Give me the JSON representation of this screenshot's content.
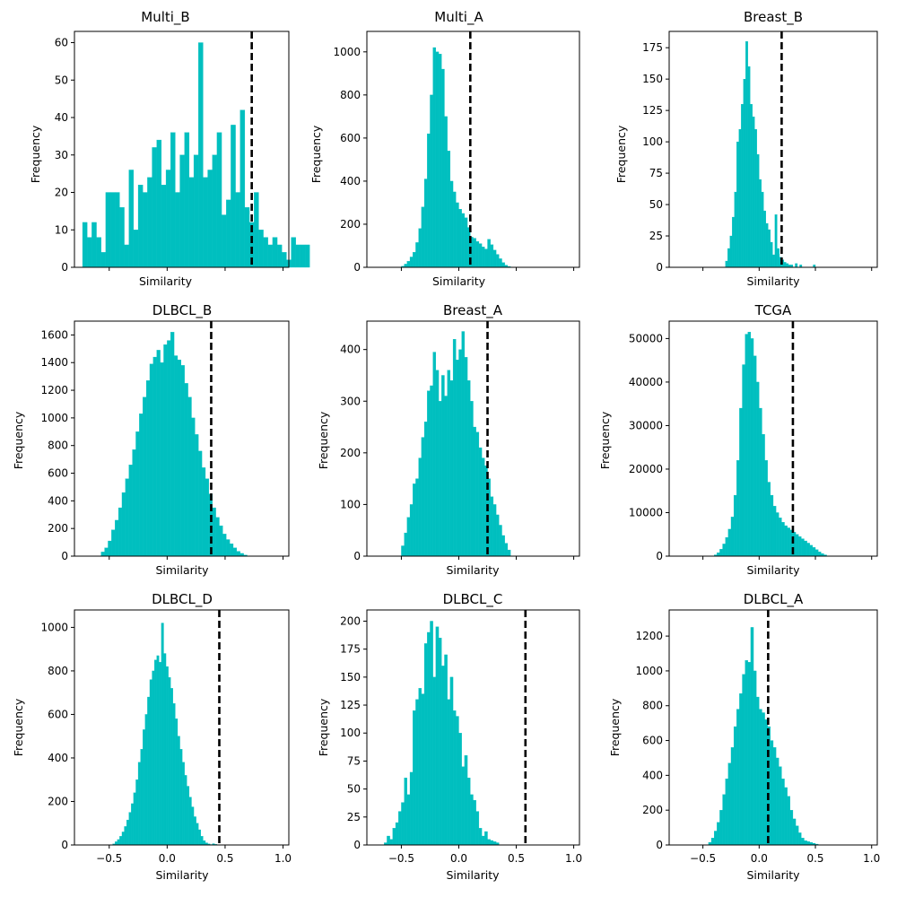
{
  "figure": {
    "bar_color": "#00BFBF",
    "threshold_color": "#000000"
  },
  "chart_data": [
    {
      "type": "histogram",
      "title": "Multi_B",
      "xlabel": "Similarity",
      "ylabel": "Frequency",
      "xlim": [
        -0.8,
        1.05
      ],
      "ylim": [
        0,
        63
      ],
      "yticks": [
        0,
        10,
        20,
        30,
        40,
        50,
        60
      ],
      "xticks": [
        -0.5,
        0.0,
        0.5,
        1.0
      ],
      "xtick_labels_shown": false,
      "threshold": 0.73,
      "bin_width": 0.04,
      "bin_start": -0.73,
      "values": [
        12,
        8,
        12,
        8,
        4,
        20,
        20,
        20,
        16,
        6,
        26,
        10,
        22,
        20,
        24,
        32,
        34,
        22,
        26,
        36,
        20,
        30,
        36,
        24,
        30,
        60,
        24,
        26,
        30,
        36,
        14,
        18,
        38,
        20,
        42,
        16,
        12,
        20,
        10,
        8,
        6,
        8,
        6,
        4,
        2,
        8,
        6,
        6,
        6
      ]
    },
    {
      "type": "histogram",
      "title": "Multi_A",
      "xlabel": "Similarity",
      "ylabel": "Frequency",
      "xlim": [
        -0.8,
        1.05
      ],
      "ylim": [
        0,
        1095
      ],
      "yticks": [
        0,
        200,
        400,
        600,
        800,
        1000
      ],
      "xticks": [
        -0.5,
        0.0,
        0.5,
        1.0
      ],
      "xtick_labels_shown": false,
      "threshold": 0.1,
      "bin_width": 0.025,
      "bin_start": -0.5,
      "values": [
        5,
        15,
        28,
        48,
        70,
        115,
        180,
        280,
        410,
        620,
        800,
        1020,
        1000,
        990,
        920,
        700,
        540,
        400,
        350,
        300,
        270,
        250,
        230,
        185,
        140,
        135,
        120,
        110,
        95,
        85,
        130,
        105,
        80,
        60,
        40,
        22,
        10,
        4
      ]
    },
    {
      "type": "histogram",
      "title": "Breast_B",
      "xlabel": "Similarity",
      "ylabel": "Frequency",
      "xlim": [
        -0.8,
        1.05
      ],
      "ylim": [
        0,
        188
      ],
      "yticks": [
        0,
        25,
        50,
        75,
        100,
        125,
        150,
        175
      ],
      "xticks": [
        -0.5,
        0.0,
        0.5,
        1.0
      ],
      "xtick_labels_shown": false,
      "threshold": 0.2,
      "bin_width": 0.02,
      "bin_start": -0.3,
      "values": [
        5,
        15,
        25,
        40,
        60,
        100,
        110,
        130,
        150,
        180,
        160,
        130,
        120,
        110,
        90,
        70,
        60,
        45,
        35,
        30,
        20,
        10,
        42,
        15,
        8,
        6,
        4,
        3,
        2,
        2,
        0,
        3,
        0,
        2,
        0,
        0,
        0,
        0,
        0,
        2
      ]
    },
    {
      "type": "histogram",
      "title": "DLBCL_B",
      "xlabel": "Similarity",
      "ylabel": "Frequency",
      "xlim": [
        -0.8,
        1.05
      ],
      "ylim": [
        0,
        1700
      ],
      "yticks": [
        0,
        200,
        400,
        600,
        800,
        1000,
        1200,
        1400,
        1600
      ],
      "xticks": [
        -0.5,
        0.0,
        0.5,
        1.0
      ],
      "xtick_labels_shown": false,
      "threshold": 0.38,
      "bin_width": 0.03,
      "bin_start": -0.57,
      "values": [
        30,
        60,
        110,
        190,
        260,
        350,
        460,
        560,
        660,
        770,
        900,
        1030,
        1150,
        1270,
        1390,
        1440,
        1490,
        1400,
        1530,
        1560,
        1620,
        1450,
        1420,
        1380,
        1250,
        1150,
        1000,
        880,
        760,
        640,
        560,
        450,
        350,
        280,
        220,
        160,
        120,
        90,
        60,
        35,
        20,
        8
      ]
    },
    {
      "type": "histogram",
      "title": "Breast_A",
      "xlabel": "Similarity",
      "ylabel": "Frequency",
      "xlim": [
        -0.8,
        1.05
      ],
      "ylim": [
        0,
        455
      ],
      "yticks": [
        0,
        100,
        200,
        300,
        400
      ],
      "xticks": [
        -0.5,
        0.0,
        0.5,
        1.0
      ],
      "xtick_labels_shown": false,
      "threshold": 0.25,
      "bin_width": 0.025,
      "bin_start": -0.5,
      "values": [
        20,
        45,
        75,
        100,
        140,
        150,
        190,
        230,
        260,
        320,
        330,
        395,
        360,
        300,
        350,
        310,
        360,
        340,
        420,
        380,
        400,
        435,
        385,
        340,
        300,
        250,
        240,
        210,
        190,
        175,
        150,
        115,
        100,
        80,
        60,
        40,
        25,
        12
      ]
    },
    {
      "type": "histogram",
      "title": "TCGA",
      "xlabel": "Similarity",
      "ylabel": "Frequency",
      "xlim": [
        -0.8,
        1.05
      ],
      "ylim": [
        0,
        54000
      ],
      "yticks": [
        0,
        10000,
        20000,
        30000,
        40000,
        50000
      ],
      "xticks": [
        -0.5,
        0.0,
        0.5,
        1.0
      ],
      "xtick_labels_shown": false,
      "threshold": 0.3,
      "bin_width": 0.025,
      "bin_start": -0.4,
      "values": [
        300,
        800,
        1600,
        2800,
        4300,
        6200,
        9000,
        14000,
        22000,
        34000,
        44000,
        51000,
        51500,
        50000,
        46000,
        40000,
        34000,
        28000,
        22000,
        17000,
        14000,
        11500,
        10000,
        8800,
        7800,
        7000,
        6500,
        6000,
        5500,
        5000,
        4500,
        4000,
        3500,
        3000,
        2500,
        2000,
        1500,
        1000,
        600,
        300
      ]
    },
    {
      "type": "histogram",
      "title": "DLBCL_D",
      "xlabel": "Similarity",
      "ylabel": "Frequency",
      "xlim": [
        -0.8,
        1.05
      ],
      "ylim": [
        0,
        1080
      ],
      "yticks": [
        0,
        200,
        400,
        600,
        800,
        1000
      ],
      "xticks": [
        -0.5,
        0.0,
        0.5,
        1.0
      ],
      "xtick_labels_shown": false,
      "threshold": 0.45,
      "bin_width": 0.02,
      "bin_start": -0.47,
      "values": [
        5,
        15,
        25,
        40,
        60,
        85,
        115,
        150,
        190,
        240,
        300,
        380,
        440,
        530,
        600,
        680,
        760,
        800,
        850,
        870,
        840,
        1020,
        880,
        820,
        770,
        720,
        650,
        580,
        500,
        440,
        380,
        320,
        270,
        220,
        175,
        130,
        100,
        70,
        40,
        20,
        10,
        5,
        2,
        6,
        3
      ]
    },
    {
      "type": "histogram",
      "title": "DLBCL_C",
      "xlabel": "Similarity",
      "ylabel": "Frequency",
      "xlim": [
        -0.8,
        1.05
      ],
      "ylim": [
        0,
        210
      ],
      "yticks": [
        0,
        25,
        50,
        75,
        100,
        125,
        150,
        175,
        200
      ],
      "xticks": [
        -0.5,
        0.0,
        0.5,
        1.0
      ],
      "xtick_labels_shown": false,
      "threshold": 0.58,
      "bin_width": 0.025,
      "bin_start": -0.65,
      "values": [
        2,
        8,
        5,
        15,
        20,
        30,
        38,
        60,
        45,
        65,
        120,
        130,
        140,
        135,
        180,
        190,
        200,
        150,
        195,
        185,
        160,
        170,
        130,
        150,
        120,
        115,
        100,
        70,
        80,
        60,
        45,
        40,
        30,
        15,
        8,
        12,
        5,
        4,
        3,
        2
      ]
    },
    {
      "type": "histogram",
      "title": "DLBCL_A",
      "xlabel": "Similarity",
      "ylabel": "Frequency",
      "xlim": [
        -0.8,
        1.05
      ],
      "ylim": [
        0,
        1350
      ],
      "yticks": [
        0,
        200,
        400,
        600,
        800,
        1000,
        1200
      ],
      "xticks": [
        -0.5,
        0.0,
        0.5,
        1.0
      ],
      "xtick_labels_shown": false,
      "threshold": 0.08,
      "bin_width": 0.025,
      "bin_start": -0.45,
      "values": [
        15,
        40,
        80,
        130,
        200,
        290,
        380,
        470,
        560,
        680,
        780,
        870,
        980,
        1060,
        1050,
        1250,
        1000,
        850,
        780,
        760,
        720,
        680,
        600,
        560,
        500,
        450,
        380,
        330,
        280,
        200,
        150,
        110,
        70,
        40,
        25,
        20,
        15,
        10,
        5
      ]
    }
  ]
}
